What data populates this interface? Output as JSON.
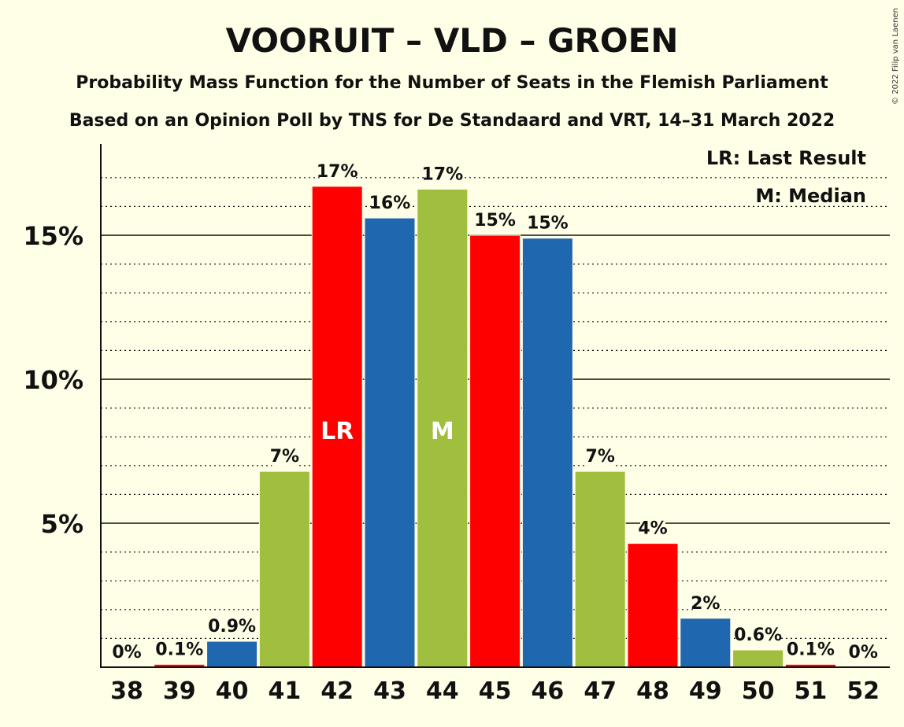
{
  "chart_data": {
    "type": "bar",
    "title": "VOORUIT – VLD – GROEN",
    "subtitle": "Probability Mass Function for the Number of Seats in the Flemish Parliament",
    "subtitle2": "Based on an Opinion Poll by TNS for De Standaard and VRT, 14–31 March 2022",
    "xlabel": "",
    "ylabel": "",
    "ylim": [
      0,
      18
    ],
    "yticks": [
      5,
      10,
      15
    ],
    "ytick_labels": [
      "5%",
      "10%",
      "15%"
    ],
    "grid": "dotted minor lines every 1%, solid major lines every 5%",
    "categories": [
      "38",
      "39",
      "40",
      "41",
      "42",
      "43",
      "44",
      "45",
      "46",
      "47",
      "48",
      "49",
      "50",
      "51",
      "52"
    ],
    "values": [
      0,
      0.1,
      0.9,
      6.8,
      16.7,
      15.6,
      16.6,
      15.0,
      14.9,
      6.8,
      4.3,
      1.7,
      0.6,
      0.1,
      0
    ],
    "labels": [
      "0%",
      "0.1%",
      "0.9%",
      "7%",
      "17%",
      "16%",
      "17%",
      "15%",
      "15%",
      "7%",
      "4%",
      "2%",
      "0.6%",
      "0.1%",
      "0%"
    ],
    "bar_colors": [
      "#FF0000",
      "#FF0000",
      "#1F68B0",
      "#A0BF3F",
      "#FF0000",
      "#1F68B0",
      "#A0BF3F",
      "#FF0000",
      "#1F68B0",
      "#A0BF3F",
      "#FF0000",
      "#1F68B0",
      "#A0BF3F",
      "#FF0000",
      "#1F68B0"
    ],
    "last_result": "42",
    "median": "44",
    "inside_labels": {
      "42": "LR",
      "44": "M"
    },
    "legend": [
      "LR: Last Result",
      "M: Median"
    ],
    "legend_position": "top-right",
    "copyright": "© 2022 Filip van Laenen"
  }
}
